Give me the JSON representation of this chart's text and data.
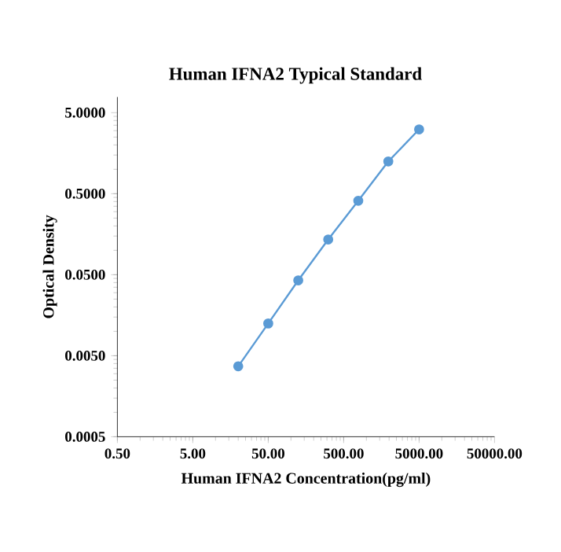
{
  "chart_data": {
    "type": "line",
    "title": "Human  IFNA2 Typical Standard",
    "xlabel": "Human IFNA2 Concentration(pg/ml)",
    "ylabel": "Optical Density",
    "log": "xy",
    "marker": "circle",
    "line_style": "solid",
    "xlim": [
      0.5,
      50000
    ],
    "ylim": [
      0.0005,
      7.8
    ],
    "xticks": [
      {
        "value": 0.5,
        "label": "0.50"
      },
      {
        "value": 5,
        "label": "5.00"
      },
      {
        "value": 50,
        "label": "50.00"
      },
      {
        "value": 500,
        "label": "500.00"
      },
      {
        "value": 5000,
        "label": "5000.00"
      },
      {
        "value": 50000,
        "label": "50000.00"
      }
    ],
    "yticks": [
      {
        "value": 0.0005,
        "label": "0.0005"
      },
      {
        "value": 0.005,
        "label": "0.0050"
      },
      {
        "value": 0.05,
        "label": "0.0500"
      },
      {
        "value": 0.5,
        "label": "0.5000"
      },
      {
        "value": 5,
        "label": "5.0000"
      }
    ],
    "x": [
      20,
      50,
      125,
      312,
      781,
      1953,
      5000
    ],
    "series": [
      {
        "color": "#5b9bd5",
        "values": [
          0.0037,
          0.0125,
          0.0426,
          0.136,
          0.409,
          1.25,
          3.11
        ]
      }
    ]
  }
}
